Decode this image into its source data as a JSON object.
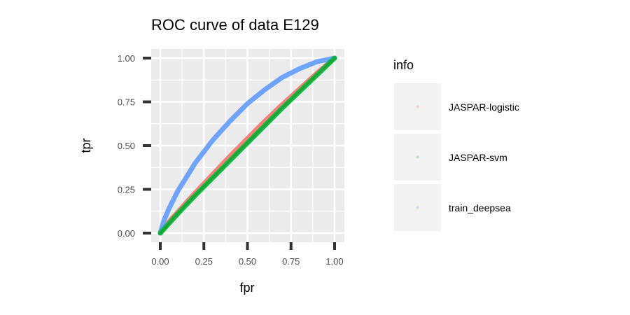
{
  "chart_data": {
    "type": "line",
    "title": "ROC curve of data E129",
    "xlabel": "fpr",
    "ylabel": "tpr",
    "xlim": [
      0,
      1
    ],
    "ylim": [
      0,
      1
    ],
    "x_ticks": [
      "0.00",
      "0.25",
      "0.50",
      "0.75",
      "1.00"
    ],
    "y_ticks": [
      "0.00",
      "0.25",
      "0.50",
      "0.75",
      "1.00"
    ],
    "grid": true,
    "legend": {
      "title": "info",
      "position": "right"
    },
    "series": [
      {
        "name": "JASPAR-logistic",
        "color": "#F8766D",
        "x": [
          0,
          0.05,
          0.1,
          0.2,
          0.3,
          0.4,
          0.5,
          0.6,
          0.7,
          0.8,
          0.9,
          1.0
        ],
        "y": [
          0,
          0.065,
          0.12,
          0.23,
          0.335,
          0.44,
          0.54,
          0.64,
          0.735,
          0.825,
          0.915,
          1.0
        ]
      },
      {
        "name": "JASPAR-svm",
        "color": "#00BA38",
        "x": [
          0,
          0.05,
          0.1,
          0.2,
          0.3,
          0.4,
          0.5,
          0.6,
          0.7,
          0.8,
          0.9,
          1.0
        ],
        "y": [
          0,
          0.055,
          0.11,
          0.215,
          0.315,
          0.415,
          0.515,
          0.615,
          0.715,
          0.81,
          0.905,
          1.0
        ]
      },
      {
        "name": "train_deepsea",
        "color": "#619CFF",
        "x": [
          0,
          0.02,
          0.05,
          0.1,
          0.15,
          0.2,
          0.3,
          0.4,
          0.5,
          0.6,
          0.7,
          0.8,
          0.9,
          1.0
        ],
        "y": [
          0,
          0.07,
          0.14,
          0.24,
          0.32,
          0.4,
          0.53,
          0.64,
          0.74,
          0.82,
          0.89,
          0.94,
          0.98,
          1.0
        ]
      }
    ]
  }
}
